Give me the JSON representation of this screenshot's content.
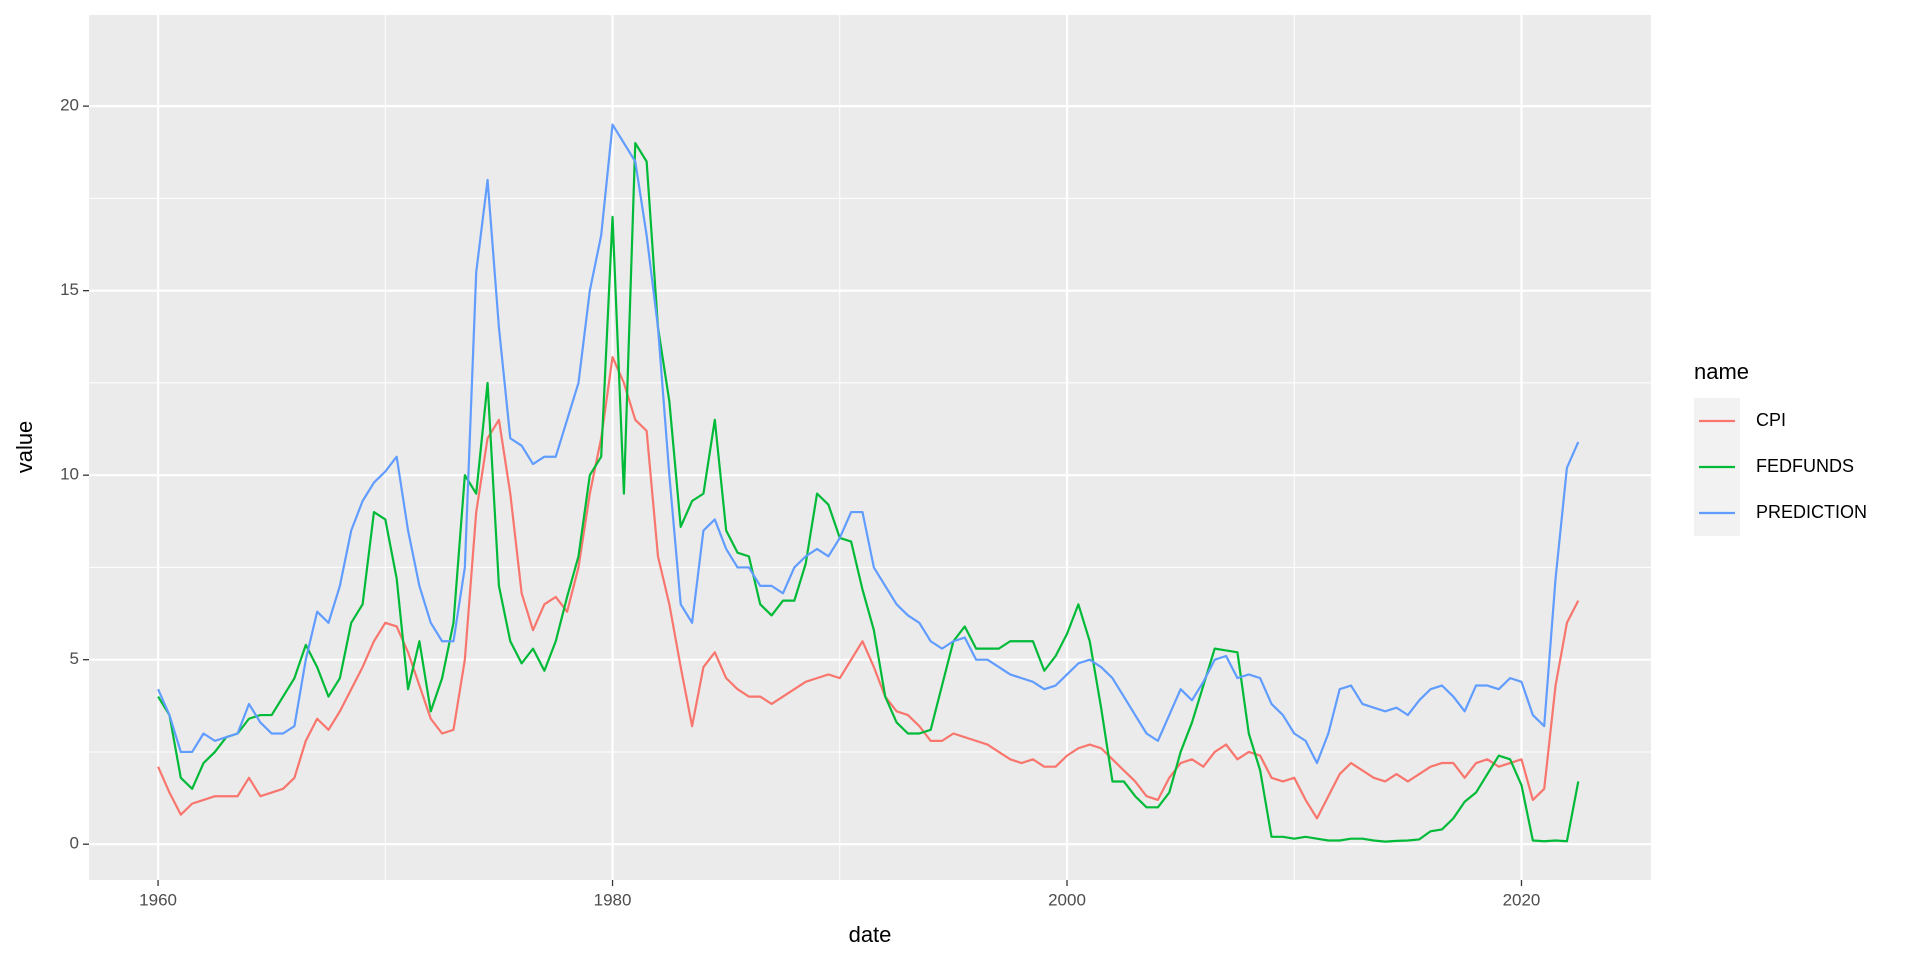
{
  "chart_data": {
    "type": "line",
    "x_label": "date",
    "y_label": "value",
    "legend_title": "name",
    "legend_position": "right",
    "grid": true,
    "xlim": [
      1956.96,
      2025.7
    ],
    "ylim": [
      -0.97,
      22.47
    ],
    "xticks": [
      1960,
      1980,
      2000,
      2020
    ],
    "yticks": [
      0,
      5,
      10,
      15,
      20
    ],
    "x": [
      1960,
      1960.5,
      1961,
      1961.5,
      1962,
      1962.5,
      1963,
      1963.5,
      1964,
      1964.5,
      1965,
      1965.5,
      1966,
      1966.5,
      1967,
      1967.5,
      1968,
      1968.5,
      1969,
      1969.5,
      1970,
      1970.5,
      1971,
      1971.5,
      1972,
      1972.5,
      1973,
      1973.5,
      1974,
      1974.5,
      1975,
      1975.5,
      1976,
      1976.5,
      1977,
      1977.5,
      1978,
      1978.5,
      1979,
      1979.5,
      1980,
      1980.5,
      1981,
      1981.5,
      1982,
      1982.5,
      1983,
      1983.5,
      1984,
      1984.5,
      1985,
      1985.5,
      1986,
      1986.5,
      1987,
      1987.5,
      1988,
      1988.5,
      1989,
      1989.5,
      1990,
      1990.5,
      1991,
      1991.5,
      1992,
      1992.5,
      1993,
      1993.5,
      1994,
      1994.5,
      1995,
      1995.5,
      1996,
      1996.5,
      1997,
      1997.5,
      1998,
      1998.5,
      1999,
      1999.5,
      2000,
      2000.5,
      2001,
      2001.5,
      2002,
      2002.5,
      2003,
      2003.5,
      2004,
      2004.5,
      2005,
      2005.5,
      2006,
      2006.5,
      2007,
      2007.5,
      2008,
      2008.5,
      2009,
      2009.5,
      2010,
      2010.5,
      2011,
      2011.5,
      2012,
      2012.5,
      2013,
      2013.5,
      2014,
      2014.5,
      2015,
      2015.5,
      2016,
      2016.5,
      2017,
      2017.5,
      2018,
      2018.5,
      2019,
      2019.5,
      2020,
      2020.5,
      2021,
      2021.5,
      2022,
      2022.5
    ],
    "series": [
      {
        "name": "CPI",
        "color": "#F8766D",
        "values": [
          2.1,
          1.4,
          0.8,
          1.1,
          1.2,
          1.3,
          1.3,
          1.3,
          1.8,
          1.3,
          1.4,
          1.5,
          1.8,
          2.8,
          3.4,
          3.1,
          3.6,
          4.2,
          4.8,
          5.5,
          6.0,
          5.9,
          5.2,
          4.3,
          3.4,
          3.0,
          3.1,
          5.0,
          9.0,
          11.0,
          11.5,
          9.5,
          6.8,
          5.8,
          6.5,
          6.7,
          6.3,
          7.5,
          9.5,
          11.0,
          13.2,
          12.5,
          11.5,
          11.2,
          7.8,
          6.5,
          4.8,
          3.2,
          4.8,
          5.2,
          4.5,
          4.2,
          4.0,
          4.0,
          3.8,
          4.0,
          4.2,
          4.4,
          4.5,
          4.6,
          4.5,
          5.0,
          5.5,
          4.8,
          4.0,
          3.6,
          3.5,
          3.2,
          2.8,
          2.8,
          3.0,
          2.9,
          2.8,
          2.7,
          2.5,
          2.3,
          2.2,
          2.3,
          2.1,
          2.1,
          2.4,
          2.6,
          2.7,
          2.6,
          2.3,
          2.0,
          1.7,
          1.3,
          1.2,
          1.8,
          2.2,
          2.3,
          2.1,
          2.5,
          2.7,
          2.3,
          2.5,
          2.4,
          1.8,
          1.7,
          1.8,
          1.2,
          0.7,
          1.3,
          1.9,
          2.2,
          2.0,
          1.8,
          1.7,
          1.9,
          1.7,
          1.9,
          2.1,
          2.2,
          2.2,
          1.8,
          2.2,
          2.3,
          2.1,
          2.2,
          2.3,
          1.2,
          1.5,
          4.3,
          6.0,
          6.6
        ]
      },
      {
        "name": "FEDFUNDS",
        "color": "#00BA38",
        "values": [
          4.0,
          3.5,
          1.8,
          1.5,
          2.2,
          2.5,
          2.9,
          3.0,
          3.4,
          3.5,
          3.5,
          4.0,
          4.5,
          5.4,
          4.8,
          4.0,
          4.5,
          6.0,
          6.5,
          9.0,
          8.8,
          7.2,
          4.2,
          5.5,
          3.6,
          4.5,
          6.0,
          10.0,
          9.5,
          12.5,
          7.0,
          5.5,
          4.9,
          5.3,
          4.7,
          5.5,
          6.7,
          7.8,
          10.0,
          10.5,
          17.0,
          9.5,
          19.0,
          18.5,
          14.0,
          12.0,
          8.6,
          9.3,
          9.5,
          11.5,
          8.5,
          7.9,
          7.8,
          6.5,
          6.2,
          6.6,
          6.6,
          7.6,
          9.5,
          9.2,
          8.3,
          8.2,
          6.9,
          5.8,
          4.0,
          3.3,
          3.0,
          3.0,
          3.1,
          4.3,
          5.5,
          5.9,
          5.3,
          5.3,
          5.3,
          5.5,
          5.5,
          5.5,
          4.7,
          5.1,
          5.7,
          6.5,
          5.5,
          3.7,
          1.7,
          1.7,
          1.3,
          1.0,
          1.0,
          1.4,
          2.5,
          3.3,
          4.3,
          5.3,
          5.25,
          5.2,
          3.0,
          2.0,
          0.2,
          0.2,
          0.15,
          0.2,
          0.15,
          0.1,
          0.1,
          0.15,
          0.15,
          0.1,
          0.07,
          0.09,
          0.1,
          0.13,
          0.35,
          0.4,
          0.7,
          1.15,
          1.4,
          1.9,
          2.4,
          2.3,
          1.6,
          0.1,
          0.08,
          0.1,
          0.08,
          1.7
        ]
      },
      {
        "name": "PREDICTION",
        "color": "#619CFF",
        "values": [
          4.2,
          3.5,
          2.5,
          2.5,
          3.0,
          2.8,
          2.9,
          3.0,
          3.8,
          3.3,
          3.0,
          3.0,
          3.2,
          5.0,
          6.3,
          6.0,
          7.0,
          8.5,
          9.3,
          9.8,
          10.1,
          10.5,
          8.5,
          7.0,
          6.0,
          5.5,
          5.5,
          7.5,
          15.5,
          18.0,
          14.0,
          11.0,
          10.8,
          10.3,
          10.5,
          10.5,
          11.5,
          12.5,
          15.0,
          16.5,
          19.5,
          19.0,
          18.5,
          16.5,
          14.0,
          10.0,
          6.5,
          6.0,
          8.5,
          8.8,
          8.0,
          7.5,
          7.5,
          7.0,
          7.0,
          6.8,
          7.5,
          7.8,
          8.0,
          7.8,
          8.3,
          9.0,
          9.0,
          7.5,
          7.0,
          6.5,
          6.2,
          6.0,
          5.5,
          5.3,
          5.5,
          5.6,
          5.0,
          5.0,
          4.8,
          4.6,
          4.5,
          4.4,
          4.2,
          4.3,
          4.6,
          4.9,
          5.0,
          4.8,
          4.5,
          4.0,
          3.5,
          3.0,
          2.8,
          3.5,
          4.2,
          3.9,
          4.4,
          5.0,
          5.1,
          4.5,
          4.6,
          4.5,
          3.8,
          3.5,
          3.0,
          2.8,
          2.2,
          3.0,
          4.2,
          4.3,
          3.8,
          3.7,
          3.6,
          3.7,
          3.5,
          3.9,
          4.2,
          4.3,
          4.0,
          3.6,
          4.3,
          4.3,
          4.2,
          4.5,
          4.4,
          3.5,
          3.2,
          7.2,
          10.2,
          10.9
        ]
      }
    ]
  }
}
